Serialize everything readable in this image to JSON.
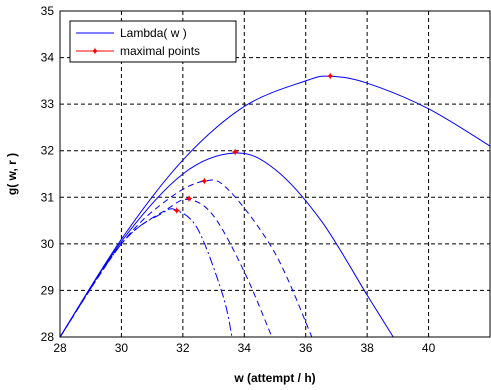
{
  "chart_data": {
    "type": "line",
    "xlabel": "w (attempt / h)",
    "ylabel": "g( w, r )",
    "xlim": [
      28,
      42
    ],
    "ylim": [
      28,
      35
    ],
    "xticks": [
      28,
      30,
      32,
      34,
      36,
      38,
      40
    ],
    "yticks": [
      28,
      29,
      30,
      31,
      32,
      33,
      34,
      35
    ],
    "grid": true,
    "legend_position": "top-left",
    "colors": {
      "curve": "#0000ff",
      "marker": "#ff0000",
      "grid": "#000000"
    },
    "series": [
      {
        "name": "Lambda( w )",
        "style": "solid",
        "x": [
          28,
          30,
          32,
          34,
          36,
          36.8,
          38,
          40,
          42
        ],
        "y": [
          28,
          30.1,
          31.8,
          32.95,
          33.5,
          33.6,
          33.45,
          32.9,
          32.1
        ]
      },
      {
        "style": "solid",
        "x": [
          28,
          30,
          32,
          33.7,
          35,
          36.5,
          38,
          38.85
        ],
        "y": [
          28,
          30.05,
          31.5,
          31.95,
          31.6,
          30.5,
          28.9,
          28
        ]
      },
      {
        "style": "dashed",
        "x": [
          28,
          30,
          31.5,
          32.7,
          33.5,
          35,
          36.2
        ],
        "y": [
          28,
          30,
          30.95,
          31.35,
          31.15,
          29.8,
          28
        ]
      },
      {
        "style": "dashed",
        "x": [
          28,
          30,
          31.5,
          32.2,
          33,
          34,
          34.9
        ],
        "y": [
          28,
          30,
          30.75,
          30.95,
          30.6,
          29.4,
          28
        ]
      },
      {
        "style": "dashdot",
        "x": [
          28,
          30,
          31.3,
          31.8,
          32.5,
          33.3,
          33.6
        ],
        "y": [
          28,
          30,
          30.65,
          30.72,
          30.3,
          28.9,
          28
        ]
      },
      {
        "name": "maximal points",
        "style": "markers",
        "x": [
          31.8,
          32.2,
          32.7,
          33.7,
          36.8
        ],
        "y": [
          30.72,
          30.97,
          31.35,
          31.97,
          33.6
        ]
      }
    ]
  }
}
